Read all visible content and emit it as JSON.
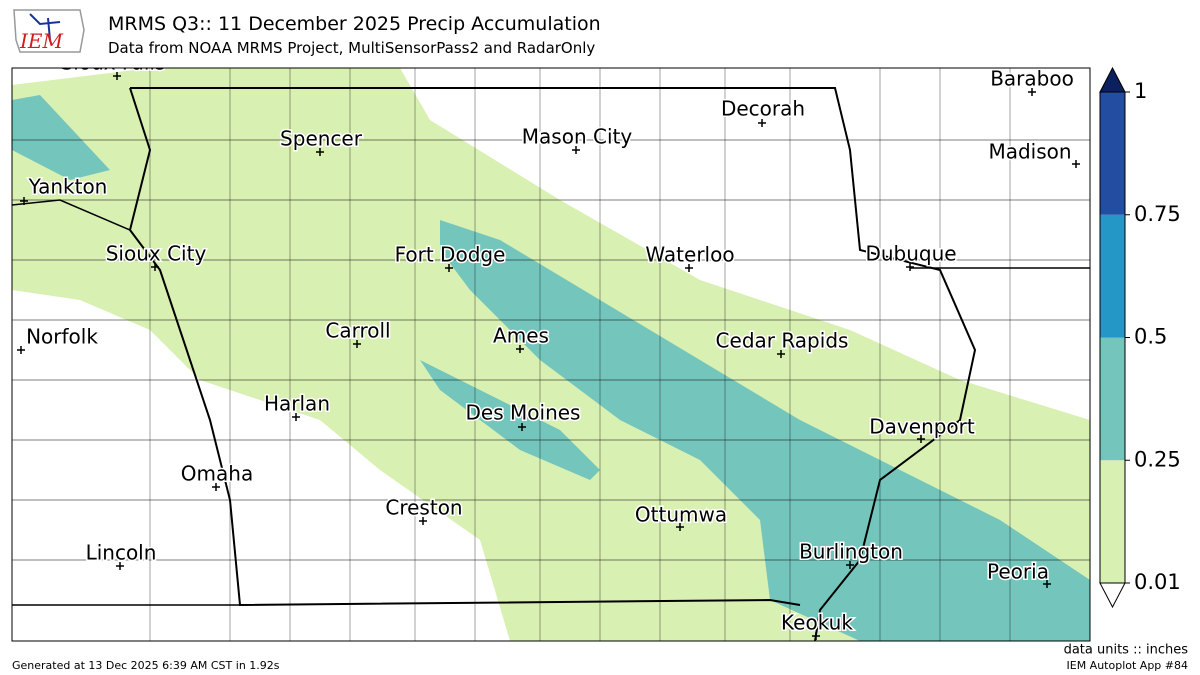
{
  "header": {
    "logo": "IEM",
    "title": "MRMS Q3:: 11 December 2025 Precip Accumulation",
    "subtitle": "Data from NOAA MRMS Project, MultiSensorPass2 and RadarOnly"
  },
  "map": {
    "cities": [
      "Sioux Falls",
      "Spencer",
      "Mason City",
      "Decorah",
      "Baraboo",
      "Madison",
      "Yankton",
      "Sioux City",
      "Fort Dodge",
      "Waterloo",
      "Dubuque",
      "Norfolk",
      "Carroll",
      "Ames",
      "Cedar Rapids",
      "Harlan",
      "Des Moines",
      "Davenport",
      "Omaha",
      "Creston",
      "Ottumwa",
      "Lincoln",
      "Burlington",
      "Peoria",
      "Keokuk"
    ]
  },
  "colorbar": {
    "ticks": [
      0.01,
      0.25,
      0.5,
      0.75,
      1
    ],
    "colors": [
      "#d9f0b3",
      "#74c6bd",
      "#2497c6",
      "#234da0"
    ],
    "over_color": "#0c1f5e",
    "units": "data units :: inches"
  },
  "footer": {
    "generated": "Generated at 13 Dec 2025 6:39 AM CST in 1.92s",
    "app": "IEM Autoplot App #84"
  }
}
